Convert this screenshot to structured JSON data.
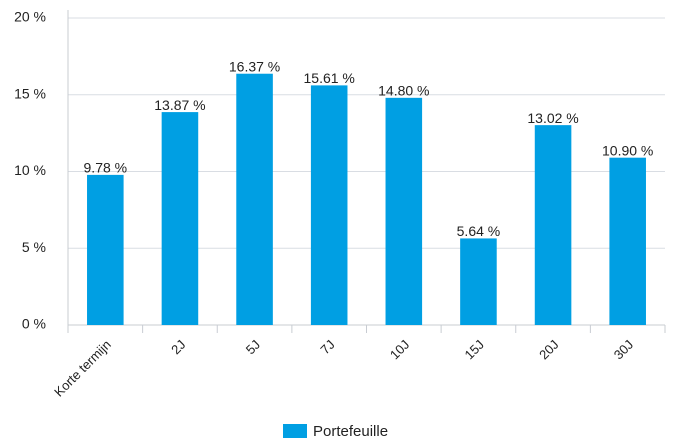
{
  "chart_data": {
    "type": "bar",
    "categories": [
      "Korte termijn",
      "2J",
      "5J",
      "7J",
      "10J",
      "15J",
      "20J",
      "30J"
    ],
    "series": [
      {
        "name": "Portefeuille",
        "color": "#009fe3",
        "values": [
          9.78,
          13.87,
          16.37,
          15.61,
          14.8,
          5.64,
          13.02,
          10.9
        ],
        "value_labels": [
          "9.78 %",
          "13.87 %",
          "16.37 %",
          "15.61 %",
          "14.80 %",
          "5.64 %",
          "13.02 %",
          "10.90 %"
        ]
      }
    ],
    "ylim": [
      0,
      20
    ],
    "yticks": [
      {
        "value": 0,
        "label": "0 %"
      },
      {
        "value": 5,
        "label": "5 %"
      },
      {
        "value": 10,
        "label": "10 %"
      },
      {
        "value": 15,
        "label": "15 %"
      },
      {
        "value": 20,
        "label": "20 %"
      }
    ],
    "grid": true,
    "legend": "bottom"
  }
}
